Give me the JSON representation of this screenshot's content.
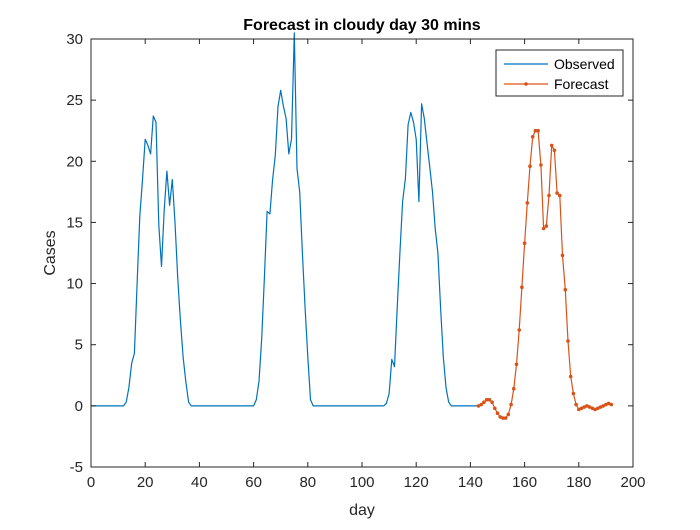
{
  "chart_data": {
    "type": "line",
    "title": "Forecast in cloudy day 30 mins",
    "xlabel": "day",
    "ylabel": "Cases",
    "xlim": [
      0,
      200
    ],
    "ylim": [
      -5,
      30
    ],
    "xticks": [
      0,
      20,
      40,
      60,
      80,
      100,
      120,
      140,
      160,
      180,
      200
    ],
    "yticks": [
      -5,
      0,
      5,
      10,
      15,
      20,
      25,
      30
    ],
    "xtick_labels": [
      "0",
      "20",
      "40",
      "60",
      "80",
      "100",
      "120",
      "140",
      "160",
      "180",
      "200"
    ],
    "ytick_labels": [
      "-5",
      "0",
      "5",
      "10",
      "15",
      "20",
      "25",
      "30"
    ],
    "grid": false,
    "legend_position": "top-right",
    "series": [
      {
        "name": "Observed",
        "color": "#0072BD",
        "marker": "none",
        "x": [
          0,
          12,
          13,
          14,
          15,
          16,
          17,
          18,
          19,
          20,
          21,
          22,
          23,
          24,
          25,
          26,
          27,
          28,
          29,
          30,
          31,
          32,
          33,
          34,
          35,
          36,
          37,
          38,
          40,
          50,
          60,
          61,
          62,
          63,
          64,
          65,
          66,
          67,
          68,
          69,
          70,
          71,
          72,
          73,
          74,
          75,
          76,
          77,
          78,
          79,
          80,
          81,
          82,
          83,
          84,
          85,
          90,
          100,
          108,
          109,
          110,
          111,
          112,
          113,
          114,
          115,
          116,
          117,
          118,
          119,
          120,
          121,
          122,
          123,
          124,
          125,
          126,
          127,
          128,
          129,
          130,
          131,
          132,
          133,
          140,
          143
        ],
        "y": [
          0,
          0,
          0.3,
          1.5,
          3.5,
          4.3,
          10,
          15.5,
          18.5,
          21.8,
          21.3,
          20.6,
          23.7,
          23.2,
          14.8,
          11.4,
          16,
          19.2,
          16.4,
          18.5,
          15,
          10.5,
          7,
          4,
          2,
          0.3,
          0,
          0,
          0,
          0,
          0,
          0.5,
          2,
          5.5,
          10.5,
          15.9,
          15.7,
          18.5,
          20.5,
          24.5,
          25.8,
          24.5,
          23.5,
          20.6,
          21.8,
          30.5,
          19.4,
          17.5,
          12.5,
          8,
          4,
          0.5,
          0,
          0,
          0,
          0,
          0,
          0,
          0,
          0.2,
          1,
          3.8,
          3.2,
          8,
          12.5,
          16.7,
          18.6,
          23,
          24,
          23.2,
          21.8,
          16.7,
          24.7,
          23.5,
          21.5,
          19.5,
          17.5,
          14.5,
          12.5,
          8,
          4,
          1.5,
          0.3,
          0,
          0,
          0
        ]
      },
      {
        "name": "Forecast",
        "color": "#D95319",
        "marker": "dot",
        "x": [
          143,
          144,
          145,
          146,
          147,
          148,
          149,
          150,
          151,
          152,
          153,
          154,
          155,
          156,
          157,
          158,
          159,
          160,
          161,
          162,
          163,
          164,
          165,
          166,
          167,
          168,
          169,
          170,
          171,
          172,
          173,
          174,
          175,
          176,
          177,
          178,
          179,
          180,
          181,
          182,
          183,
          184,
          185,
          186,
          187,
          188,
          189,
          190,
          191,
          192
        ],
        "y": [
          0,
          0.1,
          0.3,
          0.5,
          0.5,
          0.3,
          -0.2,
          -0.6,
          -0.9,
          -1.0,
          -1.0,
          -0.7,
          0.1,
          1.4,
          3.4,
          6.2,
          9.7,
          13.3,
          16.6,
          19.6,
          22.0,
          22.5,
          22.5,
          19.7,
          14.5,
          14.7,
          17.2,
          21.3,
          20.9,
          17.4,
          17.2,
          12.3,
          9.5,
          5.3,
          2.4,
          1.0,
          0.1,
          -0.3,
          -0.2,
          -0.1,
          0.0,
          -0.1,
          -0.2,
          -0.3,
          -0.2,
          -0.1,
          0.0,
          0.1,
          0.2,
          0.1
        ]
      }
    ]
  }
}
